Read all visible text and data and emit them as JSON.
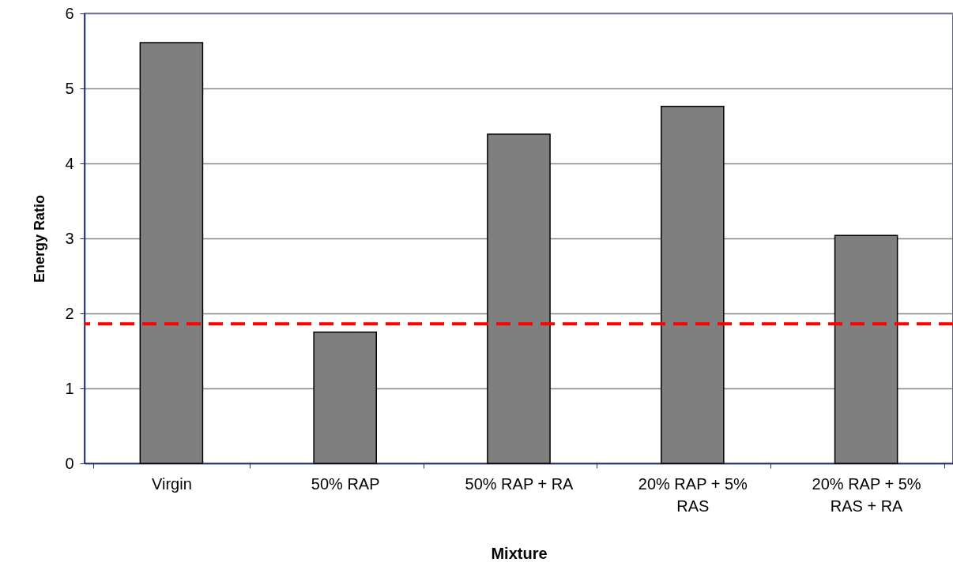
{
  "chart_data": {
    "type": "bar",
    "xlabel": "Mixture",
    "ylabel": "Energy Ratio",
    "categories": [
      "Virgin",
      "50% RAP",
      "50% RAP + RA",
      "20% RAP + 5% RAS",
      "20% RAP + 5% RAS + RA"
    ],
    "values": [
      5.61,
      1.75,
      4.39,
      4.76,
      3.04
    ],
    "color": "#7f7f7f",
    "ylim": [
      0,
      6
    ],
    "yticks": [
      0,
      1,
      2,
      3,
      4,
      5,
      6
    ],
    "grid": "y",
    "ref_lines": [
      {
        "axis": "y",
        "value": 1.86,
        "color": "#ff0000",
        "line_style": "dashed"
      }
    ]
  }
}
